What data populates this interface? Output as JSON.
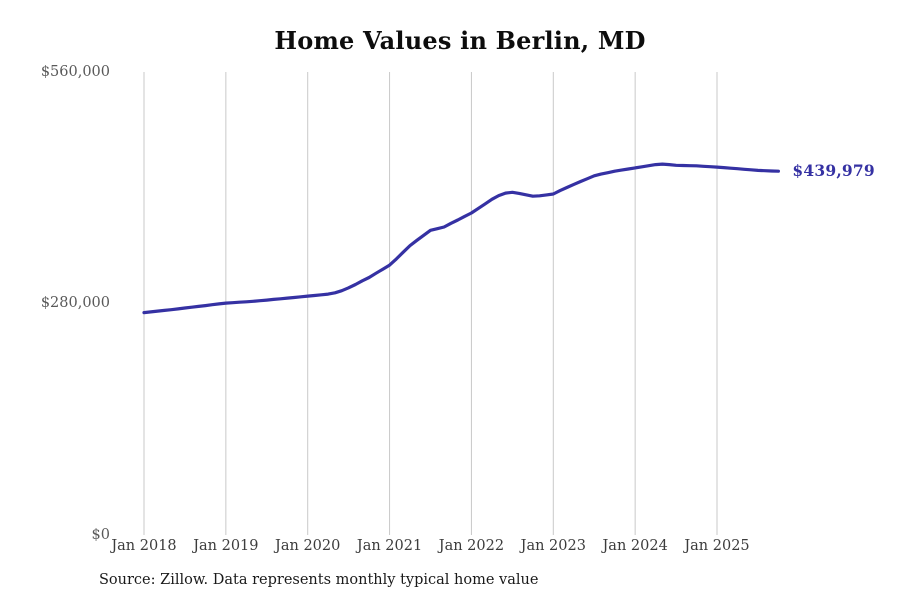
{
  "page": {
    "source_note": "Source: Zillow. Data represents monthly typical home value"
  },
  "colors": {
    "background": "#ffffff",
    "accent_line": "#3531a3",
    "gridline": "#c9c9c9",
    "y_tick_text": "#595959",
    "x_tick_text": "#3c3c3c",
    "title_text": "#0d0d0d"
  },
  "chart_data": {
    "type": "line",
    "title": "Home Values in Berlin, MD",
    "xlabel": "",
    "ylabel": "",
    "unit": "USD",
    "frequency": "monthly",
    "x_start": "Jan 2018",
    "x_end": "Oct 2025",
    "ylim": [
      0,
      560000
    ],
    "grid": "vertical-only",
    "legend": "none",
    "line_color": "#3531a3",
    "grid_color": "#c9c9c9",
    "latest_value": 439979,
    "latest_value_label": "$439,979",
    "y_ticks": [
      {
        "label": "$0",
        "value": 0
      },
      {
        "label": "$280,000",
        "value": 280000
      },
      {
        "label": "$560,000",
        "value": 560000
      }
    ],
    "x_ticks": [
      {
        "label": "Jan 2018",
        "month": 0
      },
      {
        "label": "Jan 2019",
        "month": 12
      },
      {
        "label": "Jan 2020",
        "month": 24
      },
      {
        "label": "Jan 2021",
        "month": 36
      },
      {
        "label": "Jan 2022",
        "month": 48
      },
      {
        "label": "Jan 2023",
        "month": 60
      },
      {
        "label": "Jan 2024",
        "month": 72
      },
      {
        "label": "Jan 2025",
        "month": 84
      }
    ],
    "values": [
      269000,
      269900,
      270800,
      271600,
      272500,
      273500,
      274500,
      275500,
      276500,
      277500,
      278500,
      279500,
      280500,
      281000,
      281600,
      282100,
      282700,
      283400,
      284100,
      284900,
      285700,
      286500,
      287300,
      288100,
      289000,
      289700,
      290500,
      291400,
      293000,
      295500,
      299000,
      303000,
      307500,
      311500,
      316500,
      321500,
      326500,
      334000,
      342000,
      350000,
      356500,
      362500,
      368500,
      370500,
      372500,
      377000,
      381000,
      385300,
      389500,
      395000,
      400500,
      406000,
      410500,
      413500,
      414500,
      413200,
      411500,
      409800,
      410300,
      411300,
      412500,
      416500,
      420300,
      424000,
      427500,
      431000,
      434500,
      436500,
      438200,
      440000,
      441300,
      442700,
      444000,
      445300,
      446700,
      448000,
      448600,
      448000,
      447200,
      446900,
      446700,
      446500,
      446000,
      445500,
      445000,
      444400,
      443700,
      443000,
      442300,
      441700,
      441000,
      440600,
      440200,
      439979
    ]
  }
}
